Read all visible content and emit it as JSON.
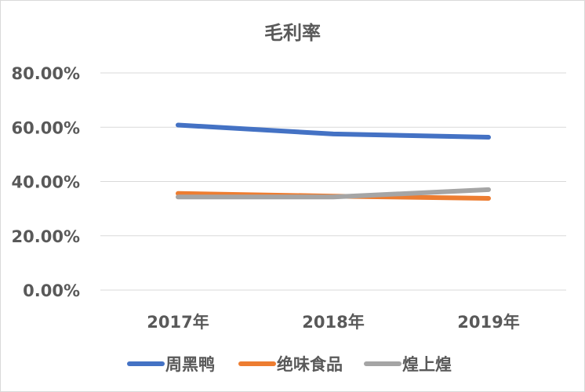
{
  "chart_data": {
    "type": "line",
    "title": "毛利率",
    "xlabel": "",
    "ylabel": "",
    "categories": [
      "2017年",
      "2018年",
      "2019年"
    ],
    "y_ticks": [
      "0.00%",
      "20.00%",
      "40.00%",
      "60.00%",
      "80.00%"
    ],
    "ylim": [
      0,
      80
    ],
    "grid": true,
    "legend_position": "bottom",
    "series": [
      {
        "name": "周黑鸭",
        "values": [
          60.8,
          57.5,
          56.3
        ],
        "color": "#4472c4"
      },
      {
        "name": "绝味食品",
        "values": [
          35.6,
          34.6,
          33.8
        ],
        "color": "#ed7d31"
      },
      {
        "name": "煌上煌",
        "values": [
          34.3,
          34.3,
          37.0
        ],
        "color": "#a5a5a5"
      }
    ]
  }
}
